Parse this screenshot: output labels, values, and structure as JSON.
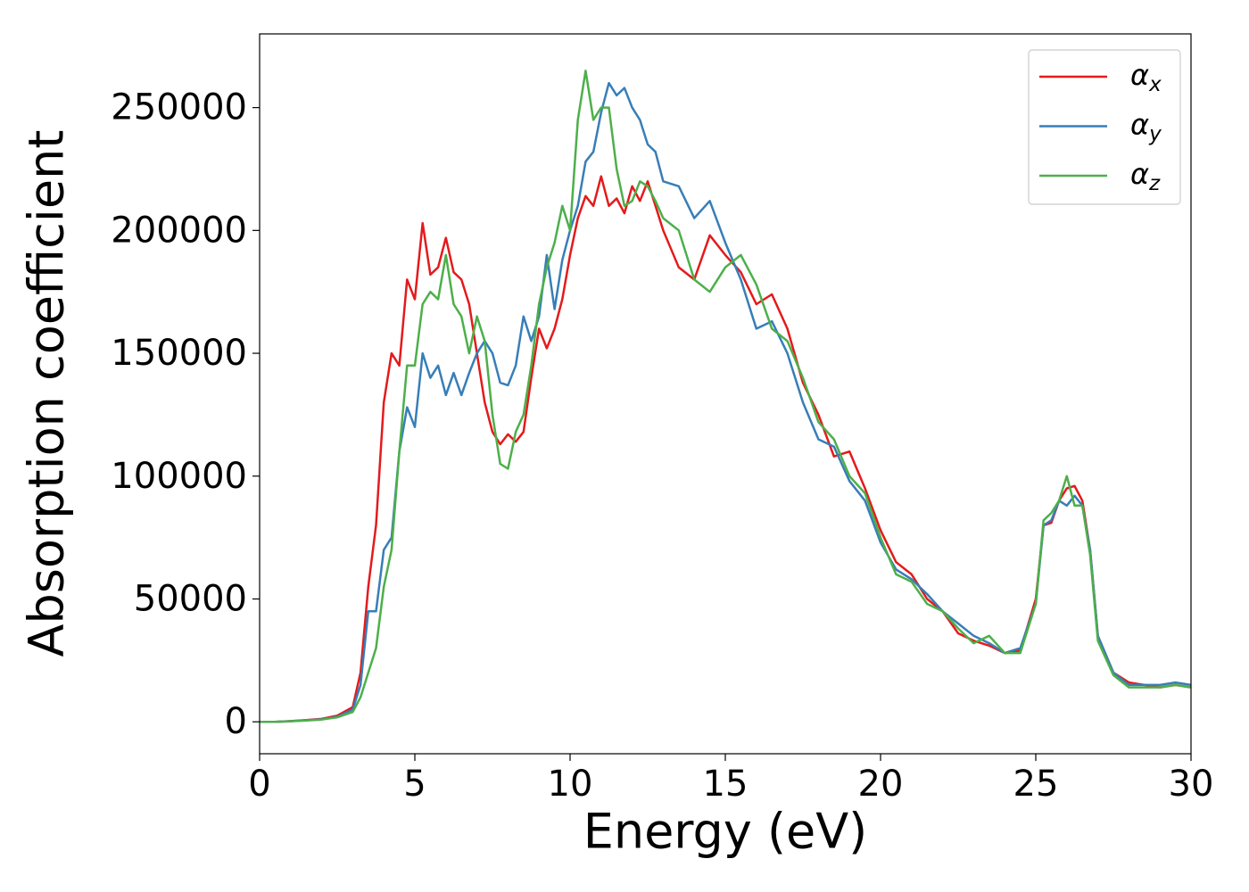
{
  "chart_data": {
    "type": "line",
    "xlabel": "Energy (eV)",
    "ylabel": "Absorption coefficient",
    "x": [
      0,
      0.5,
      1,
      1.5,
      2,
      2.5,
      3,
      3.25,
      3.5,
      3.75,
      4,
      4.25,
      4.5,
      4.75,
      5,
      5.25,
      5.5,
      5.75,
      6,
      6.25,
      6.5,
      6.75,
      7,
      7.25,
      7.5,
      7.75,
      8,
      8.25,
      8.5,
      8.75,
      9,
      9.25,
      9.5,
      9.75,
      10,
      10.25,
      10.5,
      10.75,
      11,
      11.25,
      11.5,
      11.75,
      12,
      12.25,
      12.5,
      12.75,
      13,
      13.5,
      14,
      14.5,
      15,
      15.5,
      16,
      16.5,
      17,
      17.5,
      18,
      18.5,
      19,
      19.5,
      20,
      20.5,
      21,
      21.5,
      22,
      22.5,
      23,
      23.5,
      24,
      24.5,
      25,
      25.25,
      25.5,
      25.75,
      26,
      26.25,
      26.5,
      26.75,
      27,
      27.5,
      28,
      28.5,
      29,
      29.5,
      30
    ],
    "series": [
      {
        "name": "αx",
        "color": "#e41a1c",
        "values": [
          0,
          0,
          300,
          700,
          1200,
          2500,
          6000,
          20000,
          55000,
          80000,
          130000,
          150000,
          145000,
          180000,
          172000,
          203000,
          182000,
          185000,
          197000,
          183000,
          180000,
          170000,
          150000,
          130000,
          118000,
          113000,
          117000,
          114000,
          118000,
          140000,
          160000,
          152000,
          160000,
          172000,
          190000,
          205000,
          214000,
          210000,
          222000,
          210000,
          213000,
          207000,
          218000,
          212000,
          220000,
          210000,
          200000,
          185000,
          180000,
          198000,
          190000,
          183000,
          170000,
          174000,
          160000,
          138000,
          125000,
          108000,
          110000,
          95000,
          78000,
          65000,
          60000,
          50000,
          45000,
          36000,
          33000,
          31000,
          28000,
          29000,
          50000,
          80000,
          81000,
          90000,
          95000,
          96000,
          90000,
          70000,
          35000,
          20000,
          16000,
          15000,
          14000,
          15000,
          14000
        ]
      },
      {
        "name": "αy",
        "color": "#377eb8",
        "values": [
          0,
          0,
          250,
          600,
          1000,
          2000,
          5000,
          15000,
          45000,
          45000,
          70000,
          75000,
          110000,
          128000,
          120000,
          150000,
          140000,
          145000,
          133000,
          142000,
          133000,
          142000,
          150000,
          155000,
          150000,
          138000,
          137000,
          145000,
          165000,
          155000,
          165000,
          190000,
          168000,
          188000,
          200000,
          210000,
          228000,
          232000,
          248000,
          260000,
          255000,
          258000,
          250000,
          245000,
          235000,
          232000,
          220000,
          218000,
          205000,
          212000,
          195000,
          180000,
          160000,
          163000,
          150000,
          130000,
          115000,
          112000,
          98000,
          90000,
          73000,
          62000,
          58000,
          52000,
          45000,
          40000,
          35000,
          32000,
          28000,
          30000,
          48000,
          80000,
          82000,
          90000,
          88000,
          92000,
          88000,
          70000,
          35000,
          20000,
          15000,
          15000,
          15000,
          16000,
          15000
        ]
      },
      {
        "name": "αz",
        "color": "#4daf4a",
        "values": [
          0,
          0,
          200,
          500,
          900,
          1800,
          4000,
          10000,
          20000,
          30000,
          55000,
          70000,
          110000,
          145000,
          145000,
          170000,
          175000,
          172000,
          190000,
          170000,
          165000,
          150000,
          165000,
          155000,
          125000,
          105000,
          103000,
          118000,
          125000,
          145000,
          170000,
          185000,
          195000,
          210000,
          200000,
          245000,
          265000,
          245000,
          250000,
          250000,
          225000,
          210000,
          212000,
          220000,
          218000,
          212000,
          205000,
          200000,
          180000,
          175000,
          185000,
          190000,
          178000,
          160000,
          155000,
          140000,
          122000,
          115000,
          100000,
          93000,
          75000,
          60000,
          57000,
          48000,
          45000,
          38000,
          32000,
          35000,
          28000,
          28000,
          48000,
          82000,
          85000,
          90000,
          100000,
          88000,
          88000,
          68000,
          33000,
          19000,
          14000,
          14000,
          14000,
          15000,
          14000
        ]
      }
    ],
    "xlim": [
      0,
      30
    ],
    "xticks": [
      0,
      5,
      10,
      15,
      20,
      25,
      30
    ],
    "ylim": [
      -13000,
      280000
    ],
    "yticks": [
      0,
      50000,
      100000,
      150000,
      200000,
      250000
    ],
    "grid": false,
    "legend": "upper right"
  }
}
